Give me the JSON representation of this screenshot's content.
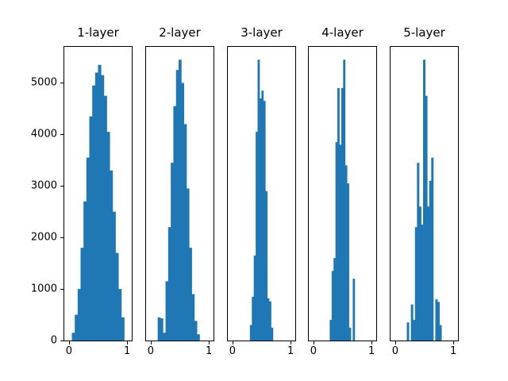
{
  "figure": {
    "background": "#ffffff",
    "axes_color": "#000000"
  },
  "chart_data": [
    {
      "type": "bar",
      "title": "1-layer",
      "bin_start": 0.05,
      "bin_width": 0.05,
      "values": [
        150,
        500,
        1000,
        1800,
        2700,
        3550,
        4350,
        4950,
        5200,
        5350,
        5150,
        4750,
        4050,
        3300,
        2500,
        1700,
        1000,
        450
      ],
      "xlim": [
        -0.08,
        1.08
      ],
      "ylim": [
        0,
        5700
      ],
      "xticks": [
        0,
        1
      ],
      "yticks": [
        0,
        1000,
        2000,
        3000,
        4000,
        5000
      ],
      "bar_color": "#1f77b4",
      "show_ytick_labels": true
    },
    {
      "type": "bar",
      "title": "2-layer",
      "bin_start": 0.12,
      "bin_width": 0.045,
      "values": [
        450,
        430,
        150,
        1150,
        2200,
        3450,
        4550,
        5250,
        5450,
        5000,
        4200,
        2950,
        1800,
        900,
        380,
        120
      ],
      "xlim": [
        -0.08,
        1.08
      ],
      "ylim": [
        0,
        5700
      ],
      "xticks": [
        0,
        1
      ],
      "yticks": [
        0,
        1000,
        2000,
        3000,
        4000,
        5000
      ],
      "bar_color": "#1f77b4",
      "show_ytick_labels": false
    },
    {
      "type": "bar",
      "title": "3-layer",
      "bin_start": 0.3,
      "bin_width": 0.033,
      "values": [
        300,
        850,
        1650,
        4050,
        5450,
        4700,
        4850,
        4650,
        2900,
        820,
        760,
        250
      ],
      "xlim": [
        -0.08,
        1.08
      ],
      "ylim": [
        0,
        5700
      ],
      "xticks": [
        0,
        1
      ],
      "yticks": [
        0,
        1000,
        2000,
        3000,
        4000,
        5000
      ],
      "bar_color": "#1f77b4",
      "show_ytick_labels": false
    },
    {
      "type": "bar",
      "title": "4-layer",
      "bin_start": 0.28,
      "bin_width": 0.033,
      "values": [
        400,
        1350,
        1600,
        3850,
        4900,
        3800,
        4900,
        5450,
        3400,
        3050,
        250,
        0,
        1200
      ],
      "xlim": [
        -0.08,
        1.08
      ],
      "ylim": [
        0,
        5700
      ],
      "xticks": [
        0,
        1
      ],
      "yticks": [
        0,
        1000,
        2000,
        3000,
        4000,
        5000
      ],
      "bar_color": "#1f77b4",
      "show_ytick_labels": false
    },
    {
      "type": "bar",
      "title": "5-layer",
      "bin_start": 0.2,
      "bin_width": 0.035,
      "values": [
        350,
        0,
        700,
        400,
        2200,
        3450,
        2600,
        2250,
        5450,
        4750,
        2600,
        3100,
        3550,
        0,
        800,
        750,
        300
      ],
      "xlim": [
        -0.08,
        1.08
      ],
      "ylim": [
        0,
        5700
      ],
      "xticks": [
        0,
        1
      ],
      "yticks": [
        0,
        1000,
        2000,
        3000,
        4000,
        5000
      ],
      "bar_color": "#1f77b4",
      "show_ytick_labels": false
    }
  ]
}
